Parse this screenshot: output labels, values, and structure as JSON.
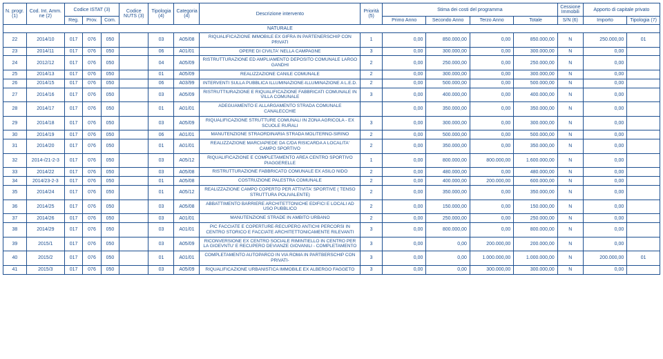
{
  "colors": {
    "line": "#1a4d8f",
    "text": "#1a4d8f",
    "bg": "#ffffff"
  },
  "header": {
    "np": "N. progr. (1)",
    "cod": "Cod. Int. Amm. ne (2)",
    "istat": "Codice ISTAT (3)",
    "reg": "Reg.",
    "prov": "Prov.",
    "com": "Com.",
    "nuts": "Codice NUTS (3)",
    "tip": "Tipologia (4)",
    "cat": "Categoria (4)",
    "desc": "Descrizione intervento",
    "prio": "Priorità (5)",
    "stima": "Stima dei costi del programma",
    "pa": "Primo Anno",
    "sa": "Secondo Anno",
    "ta": "Terzo Anno",
    "tot": "Totale",
    "cess": "Cessione Immobili",
    "sn": "S/N (6)",
    "app": "Apporto di capitale privato",
    "imp": "Importo",
    "tip7": "Tipologia (7)"
  },
  "section": "NATURALE",
  "rows": [
    {
      "np": "22",
      "cod": "2014/10",
      "reg": "017",
      "prov": "076",
      "com": "050",
      "nuts": "",
      "tip": "03",
      "cat": "A05/08",
      "desc": "RIQUALIFICAZIONE IMMOBILE EX GIFRA IN PARTENERSCHIP CON PRIVATI",
      "prio": "1",
      "pa": "0,00",
      "sa": "850.000,00",
      "ta": "0,00",
      "tot": "850.000,00",
      "sn": "N",
      "imp": "250.000,00",
      "tip7": "01"
    },
    {
      "np": "23",
      "cod": "2014/11",
      "reg": "017",
      "prov": "076",
      "com": "050",
      "nuts": "",
      "tip": "06",
      "cat": "A01/01",
      "desc": "OPERE DI CIVILTA' NELLA CAMPAGNE",
      "prio": "3",
      "pa": "0,00",
      "sa": "300.000,00",
      "ta": "0,00",
      "tot": "300.000,00",
      "sn": "N",
      "imp": "0,00",
      "tip7": ""
    },
    {
      "np": "24",
      "cod": "2012/12",
      "reg": "017",
      "prov": "076",
      "com": "050",
      "nuts": "",
      "tip": "04",
      "cat": "A05/09",
      "desc": "RISTRUTTURAZIONE ED AMPLIAMENTO DEPOSITO COMUNALE LARGO GANDHI",
      "prio": "2",
      "pa": "0,00",
      "sa": "250.000,00",
      "ta": "0,00",
      "tot": "250.000,00",
      "sn": "N",
      "imp": "0,00",
      "tip7": ""
    },
    {
      "np": "25",
      "cod": "2014/13",
      "reg": "017",
      "prov": "076",
      "com": "050",
      "nuts": "",
      "tip": "01",
      "cat": "A05/09",
      "desc": "REALIZZAZIONE CANILE COMUNALE",
      "prio": "2",
      "pa": "0,00",
      "sa": "300.000,00",
      "ta": "0,00",
      "tot": "300.000,00",
      "sn": "N",
      "imp": "0,00",
      "tip7": ""
    },
    {
      "np": "26",
      "cod": "2014/15",
      "reg": "017",
      "prov": "076",
      "com": "050",
      "nuts": "",
      "tip": "06",
      "cat": "A03/99",
      "desc": "INTERVENTI SULLA PUBBLICA ILLUMINAZIONE-ILLUMINAZIONE A L.E.D.",
      "prio": "2",
      "pa": "0,00",
      "sa": "500.000,00",
      "ta": "0,00",
      "tot": "500.000,00",
      "sn": "N",
      "imp": "0,00",
      "tip7": ""
    },
    {
      "np": "27",
      "cod": "2014/16",
      "reg": "017",
      "prov": "076",
      "com": "050",
      "nuts": "",
      "tip": "03",
      "cat": "A05/09",
      "desc": "RISTRUTTIURAZIONE E RIQUALIFICAZIONE FABBRICATI COMUNALE IN VILLA COMUNALE",
      "prio": "3",
      "pa": "0,00",
      "sa": "400.000,00",
      "ta": "0,00",
      "tot": "400.000,00",
      "sn": "N",
      "imp": "0,00",
      "tip7": ""
    },
    {
      "np": "28",
      "cod": "2014/17",
      "reg": "017",
      "prov": "076",
      "com": "050",
      "nuts": "",
      "tip": "01",
      "cat": "A01/01",
      "desc": "ADEGUAMENTO E ALLARGAMENTO STRADA COMUNALE CANALECCHIE",
      "prio": "",
      "pa": "0,00",
      "sa": "350.000,00",
      "ta": "0,00",
      "tot": "350.000,00",
      "sn": "N",
      "imp": "0,00",
      "tip7": ""
    },
    {
      "np": "29",
      "cod": "2014/18",
      "reg": "017",
      "prov": "076",
      "com": "050",
      "nuts": "",
      "tip": "03",
      "cat": "A05/09",
      "desc": "RIQUALIFICAZIONE STRUTTURE COMUNALI IN ZONA AGRICOLA - EX SCUOLE RURALI",
      "prio": "3",
      "pa": "0,00",
      "sa": "300.000,00",
      "ta": "0,00",
      "tot": "300.000,00",
      "sn": "N",
      "imp": "0,00",
      "tip7": ""
    },
    {
      "np": "30",
      "cod": "2014/19",
      "reg": "017",
      "prov": "076",
      "com": "050",
      "nuts": "",
      "tip": "06",
      "cat": "A01/01",
      "desc": "MANUTENZIONE STRAORDINARIA STRADA MOLITERNO-SIRINO",
      "prio": "2",
      "pa": "0,00",
      "sa": "500.000,00",
      "ta": "0,00",
      "tot": "500.000,00",
      "sn": "N",
      "imp": "0,00",
      "tip7": ""
    },
    {
      "np": "31",
      "cod": "2014/20",
      "reg": "017",
      "prov": "076",
      "com": "050",
      "nuts": "",
      "tip": "01",
      "cat": "A01/01",
      "desc": "REALIZZAZIONE MARCIAPIEDE DA C/DA RISICARDA A LOCALITA' CAMPO SPORTIVO",
      "prio": "2",
      "pa": "0,00",
      "sa": "350.000,00",
      "ta": "0,00",
      "tot": "350.000,00",
      "sn": "N",
      "imp": "0,00",
      "tip7": ""
    },
    {
      "np": "32",
      "cod": "2014-/21-2-3",
      "reg": "017",
      "prov": "076",
      "com": "050",
      "nuts": "",
      "tip": "03",
      "cat": "A05/12",
      "desc": "RIQUALIFICAZIONE E COMPLETAMENTO AREA CENTRO SPORTIVO PIAGGERELLE",
      "prio": "1",
      "pa": "0,00",
      "sa": "800.000,00",
      "ta": "800.000,00",
      "tot": "1.600.000,00",
      "sn": "N",
      "imp": "0,00",
      "tip7": ""
    },
    {
      "np": "33",
      "cod": "2014/22",
      "reg": "017",
      "prov": "076",
      "com": "050",
      "nuts": "",
      "tip": "03",
      "cat": "A05/08",
      "desc": "RISTRUTTURAZIONE FABBRICATO COMUNALE EX ASILO NIDO",
      "prio": "2",
      "pa": "0,00",
      "sa": "480.000,00",
      "ta": "0,00",
      "tot": "480.000,00",
      "sn": "N",
      "imp": "0,00",
      "tip7": ""
    },
    {
      "np": "34",
      "cod": "2014/23-2-3",
      "reg": "017",
      "prov": "076",
      "com": "050",
      "nuts": "",
      "tip": "01",
      "cat": "A05/08",
      "desc": "COSTRUZIONE PALESTRA COMUNALE",
      "prio": "2",
      "pa": "0,00",
      "sa": "400.000,00",
      "ta": "200.000,00",
      "tot": "600.000,00",
      "sn": "N",
      "imp": "0,00",
      "tip7": ""
    },
    {
      "np": "35",
      "cod": "2014/24",
      "reg": "017",
      "prov": "076",
      "com": "050",
      "nuts": "",
      "tip": "01",
      "cat": "A05/12",
      "desc": "REALIZZAZIONE CAMPO COPERTO PER ATTIVITA' SPORTIVE ( TENSO STRUTTURA POLIVALENTE)",
      "prio": "2",
      "pa": "0,00",
      "sa": "350.000,00",
      "ta": "0,00",
      "tot": "350.000,00",
      "sn": "N",
      "imp": "0,00",
      "tip7": ""
    },
    {
      "np": "36",
      "cod": "2014/25",
      "reg": "017",
      "prov": "076",
      "com": "050",
      "nuts": "",
      "tip": "03",
      "cat": "A05/08",
      "desc": "ABBATTIMENTO BARRIERE ARCHITETTONICHE EDIFICI E LOCALI AD USO PUBBLICO",
      "prio": "2",
      "pa": "0,00",
      "sa": "150.000,00",
      "ta": "0,00",
      "tot": "150.000,00",
      "sn": "N",
      "imp": "0,00",
      "tip7": ""
    },
    {
      "np": "37",
      "cod": "2014/26",
      "reg": "017",
      "prov": "076",
      "com": "050",
      "nuts": "",
      "tip": "03",
      "cat": "A01/01",
      "desc": "MANUTENZIONE STRADE IN AMBITO URBANO",
      "prio": "2",
      "pa": "0,00",
      "sa": "250.000,00",
      "ta": "0,00",
      "tot": "250.000,00",
      "sn": "N",
      "imp": "0,00",
      "tip7": ""
    },
    {
      "np": "38",
      "cod": "2014/29",
      "reg": "017",
      "prov": "076",
      "com": "050",
      "nuts": "",
      "tip": "03",
      "cat": "A01/01",
      "desc": "PIC FACCIATE E COPERTURE-RECUPERO ANTICHI PERCORSI IN CENTRO STORICO E FACCIATE ARCHITETTONICAMENTE RILEVANTI",
      "prio": "3",
      "pa": "0,00",
      "sa": "800.000,00",
      "ta": "0,00",
      "tot": "800.000,00",
      "sn": "N",
      "imp": "0,00",
      "tip7": ""
    },
    {
      "np": "39",
      "cod": "2015/1",
      "reg": "017",
      "prov": "076",
      "com": "050",
      "nuts": "",
      "tip": "03",
      "cat": "A05/09",
      "desc": "RICONVERSIONE EX CENTRO SOCIALE RIMINTIELLO IN CENTRO PER LA GIOEVNTU' E RECUPERO DEVIANZE GIOVANILI - COMPLETAMENTO",
      "prio": "3",
      "pa": "0,00",
      "sa": "0,00",
      "ta": "200.000,00",
      "tot": "200.000,00",
      "sn": "N",
      "imp": "0,00",
      "tip7": ""
    },
    {
      "np": "40",
      "cod": "2015/2",
      "reg": "017",
      "prov": "076",
      "com": "050",
      "nuts": "",
      "tip": "01",
      "cat": "A01/01",
      "desc": "COMPLETAMENTO AUTOPARCO IN VIA ROMA IN PARTBERSCHIP CON PRIVATI-",
      "prio": "3",
      "pa": "0,00",
      "sa": "0,00",
      "ta": "1.000.000,00",
      "tot": "1.000.000,00",
      "sn": "N",
      "imp": "200.000,00",
      "tip7": "01"
    },
    {
      "np": "41",
      "cod": "2015/3",
      "reg": "017",
      "prov": "076",
      "com": "050",
      "nuts": "",
      "tip": "03",
      "cat": "A05/09",
      "desc": "RIQUALIFICAZIONE URBANISTICA IMMOBILE EX ALBERGO FAGGETO",
      "prio": "3",
      "pa": "0,00",
      "sa": "0,00",
      "ta": "300.000,00",
      "tot": "300.000,00",
      "sn": "N",
      "imp": "0,00",
      "tip7": ""
    }
  ]
}
